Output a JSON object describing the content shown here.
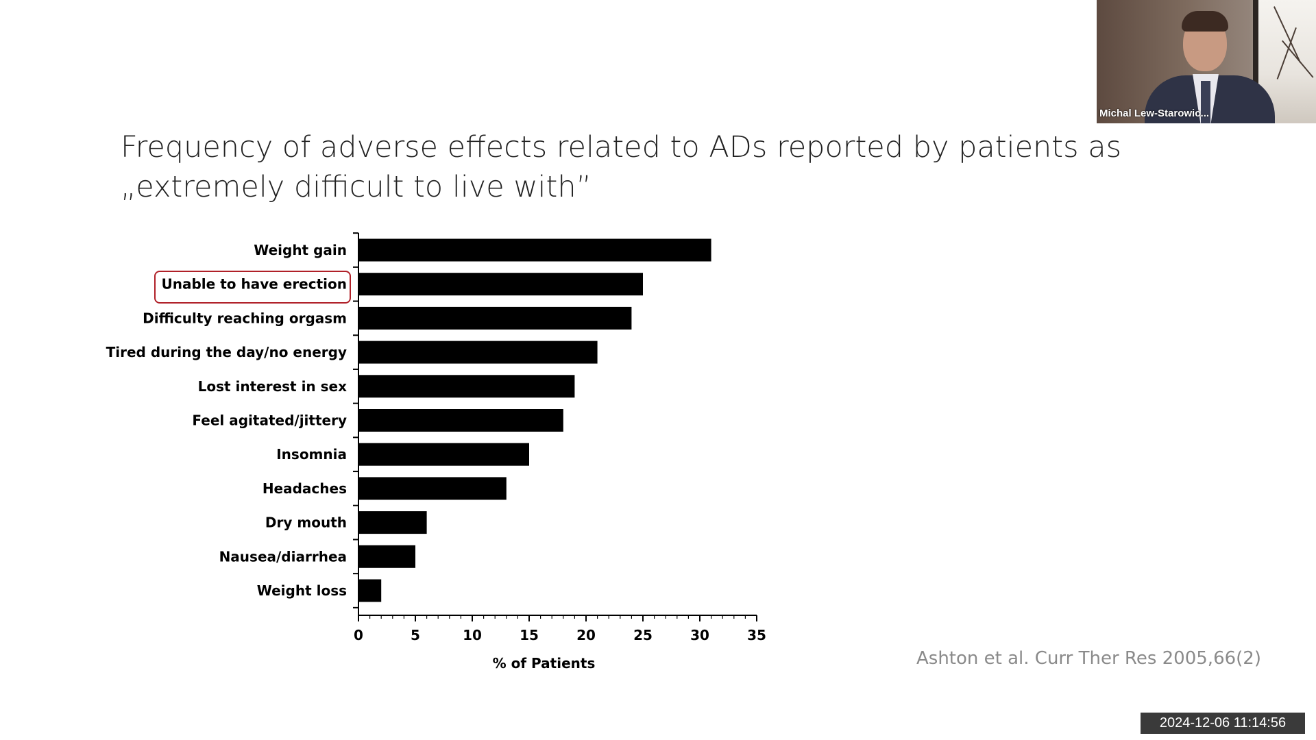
{
  "title": {
    "line1": "Frequency of adverse effects related to ADs reported by patients as",
    "line2": "„extremely difficult to live with”"
  },
  "chart_data": {
    "type": "bar",
    "orientation": "horizontal",
    "categories": [
      "Weight gain",
      "Unable to have erection",
      "Difficulty reaching orgasm",
      "Tired during the day/no energy",
      "Lost interest in sex",
      "Feel agitated/jittery",
      "Insomnia",
      "Headaches",
      "Dry mouth",
      "Nausea/diarrhea",
      "Weight loss"
    ],
    "values": [
      31,
      25,
      24,
      21,
      19,
      18,
      15,
      13,
      6,
      5,
      2
    ],
    "xlabel": "% of Patients",
    "ylabel": "",
    "xlim": [
      0,
      35
    ],
    "xticks": [
      0,
      5,
      10,
      15,
      20,
      25,
      30,
      35
    ],
    "highlighted_category": "Unable to have erection",
    "bar_color": "#000000",
    "highlight_color": "#b02028",
    "grid": false
  },
  "citation": "Ashton et al. Curr Ther Res 2005,66(2)",
  "video": {
    "participant_name": "Michal Lew-Starowic..."
  },
  "timestamp": "2024-12-06  11:14:56"
}
